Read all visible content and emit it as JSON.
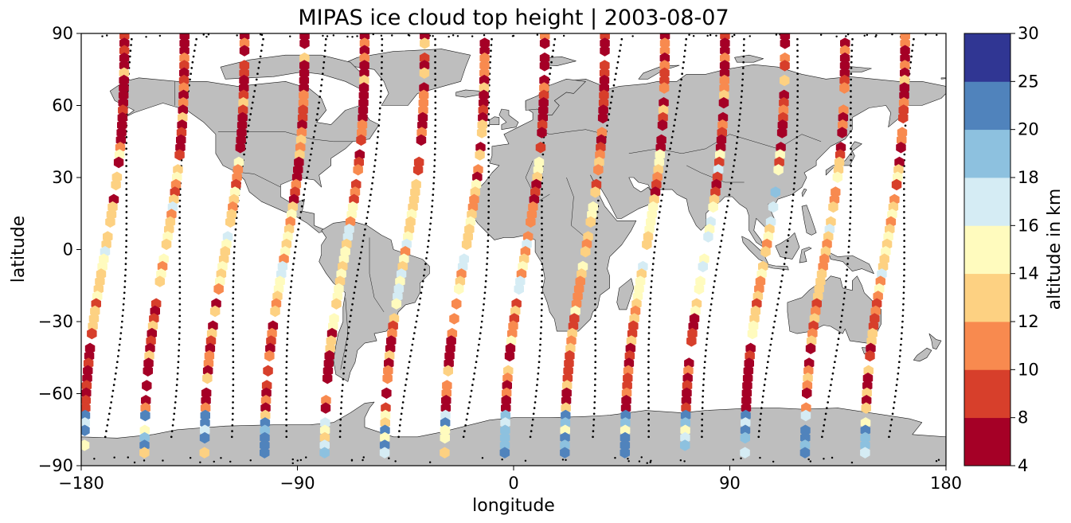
{
  "title": "MIPAS ice cloud top height | 2003-08-07",
  "colors": {
    "land": "#bebebe",
    "coast": "#1a1a1a",
    "frame": "#000000",
    "no_cloud_track": "#000000"
  },
  "chart_data": {
    "type": "scatter",
    "title": "MIPAS ice cloud top height | 2003-08-07",
    "xlabel": "longitude",
    "ylabel": "latitude",
    "xlim": [
      -180,
      180
    ],
    "ylim": [
      -90,
      90
    ],
    "x_ticks": [
      -180,
      -90,
      0,
      90,
      180
    ],
    "x_tick_labels": [
      "−180",
      "−90",
      "0",
      "90",
      "180"
    ],
    "y_ticks": [
      90,
      60,
      30,
      0,
      -30,
      -60,
      -90
    ],
    "y_tick_labels": [
      "90",
      "60",
      "30",
      "0",
      "−30",
      "−60",
      "−90"
    ],
    "marker": "hexagon",
    "grid": false,
    "colorbar": {
      "label": "altitude in km",
      "boundaries": [
        4,
        8,
        10,
        12,
        14,
        16,
        18,
        20,
        25,
        30
      ],
      "tick_labels": [
        "4",
        "8",
        "10",
        "12",
        "14",
        "16",
        "18",
        "20",
        "25",
        "30"
      ],
      "colors": [
        "#a50026",
        "#d73027",
        "#f46d43",
        "#fdae61",
        "#fee090",
        "#e0f3f8",
        "#abd9e9",
        "#74add1",
        "#4575b4",
        "#313695"
      ],
      "display_colors": [
        "#a50026",
        "#d73f2b",
        "#f88a4f",
        "#fdd182",
        "#fffbbe",
        "#d5ecf4",
        "#8dc1df",
        "#5083bc",
        "#303693"
      ]
    },
    "orbit_tracks": [
      {
        "start_lon": -170,
        "step": 1.35
      },
      {
        "start_lon": -145,
        "step": 1.35
      },
      {
        "start_lon": -120,
        "step": 1.35
      },
      {
        "start_lon": -95,
        "step": 1.35
      },
      {
        "start_lon": -70,
        "step": 1.35
      },
      {
        "start_lon": -45,
        "step": 1.35
      },
      {
        "start_lon": -20,
        "step": 1.35
      },
      {
        "start_lon": 5,
        "step": 1.35
      },
      {
        "start_lon": 30,
        "step": 1.35
      },
      {
        "start_lon": 55,
        "step": 1.35
      },
      {
        "start_lon": 80,
        "step": 1.35
      },
      {
        "start_lon": 105,
        "step": 1.35
      },
      {
        "start_lon": 130,
        "step": 1.35
      },
      {
        "start_lon": 155,
        "step": 1.35
      }
    ],
    "descending_tracks": [
      {
        "north_lon": -162,
        "south_lon": -178
      },
      {
        "north_lon": -137,
        "south_lon": -153
      },
      {
        "north_lon": -112,
        "south_lon": -128
      },
      {
        "north_lon": -87,
        "south_lon": -103
      },
      {
        "north_lon": -62,
        "south_lon": -78
      },
      {
        "north_lon": -37,
        "south_lon": -53
      },
      {
        "north_lon": -12,
        "south_lon": -28
      },
      {
        "north_lon": 13,
        "south_lon": -3
      },
      {
        "north_lon": 38,
        "south_lon": 22
      },
      {
        "north_lon": 63,
        "south_lon": 47
      },
      {
        "north_lon": 88,
        "south_lon": 72
      },
      {
        "north_lon": 113,
        "south_lon": 97
      },
      {
        "north_lon": 138,
        "south_lon": 122
      },
      {
        "north_lon": 163,
        "south_lon": 147
      }
    ]
  }
}
